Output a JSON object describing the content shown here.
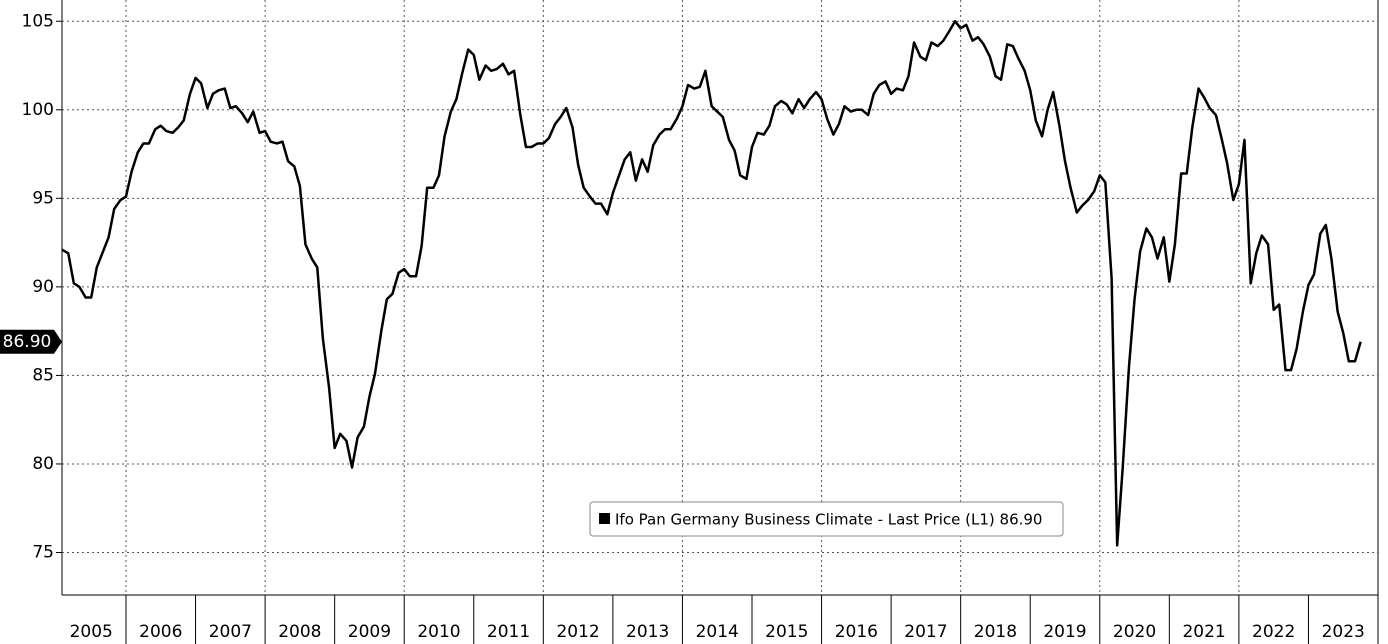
{
  "chart_data": {
    "type": "line",
    "series": [
      {
        "name": "Ifo Pan Germany Business Climate - Last Price (L1) 86.90",
        "color": "#000000",
        "x": [
          2005.08,
          2005.17,
          2005.25,
          2005.33,
          2005.42,
          2005.5,
          2005.58,
          2005.67,
          2005.75,
          2005.83,
          2005.92,
          2006,
          2006.08,
          2006.17,
          2006.25,
          2006.33,
          2006.42,
          2006.5,
          2006.58,
          2006.67,
          2006.75,
          2006.83,
          2006.92,
          2007,
          2007.08,
          2007.17,
          2007.25,
          2007.33,
          2007.42,
          2007.5,
          2007.58,
          2007.67,
          2007.75,
          2007.83,
          2007.92,
          2008,
          2008.08,
          2008.17,
          2008.25,
          2008.33,
          2008.42,
          2008.5,
          2008.58,
          2008.67,
          2008.75,
          2008.83,
          2008.92,
          2009,
          2009.08,
          2009.17,
          2009.25,
          2009.33,
          2009.42,
          2009.5,
          2009.58,
          2009.67,
          2009.75,
          2009.83,
          2009.92,
          2010,
          2010.08,
          2010.17,
          2010.25,
          2010.33,
          2010.42,
          2010.5,
          2010.58,
          2010.67,
          2010.75,
          2010.83,
          2010.92,
          2011,
          2011.08,
          2011.17,
          2011.25,
          2011.33,
          2011.42,
          2011.5,
          2011.58,
          2011.67,
          2011.75,
          2011.83,
          2011.92,
          2012,
          2012.08,
          2012.17,
          2012.25,
          2012.33,
          2012.42,
          2012.5,
          2012.58,
          2012.67,
          2012.75,
          2012.83,
          2012.92,
          2013,
          2013.08,
          2013.17,
          2013.25,
          2013.33,
          2013.42,
          2013.5,
          2013.58,
          2013.67,
          2013.75,
          2013.83,
          2013.92,
          2014,
          2014.08,
          2014.17,
          2014.25,
          2014.33,
          2014.42,
          2014.5,
          2014.58,
          2014.67,
          2014.75,
          2014.83,
          2014.92,
          2015,
          2015.08,
          2015.17,
          2015.25,
          2015.33,
          2015.42,
          2015.5,
          2015.58,
          2015.67,
          2015.75,
          2015.83,
          2015.92,
          2016,
          2016.08,
          2016.17,
          2016.25,
          2016.33,
          2016.42,
          2016.5,
          2016.58,
          2016.67,
          2016.75,
          2016.83,
          2016.92,
          2017,
          2017.08,
          2017.17,
          2017.25,
          2017.33,
          2017.42,
          2017.5,
          2017.58,
          2017.67,
          2017.75,
          2017.83,
          2017.92,
          2018,
          2018.08,
          2018.17,
          2018.25,
          2018.33,
          2018.42,
          2018.5,
          2018.58,
          2018.67,
          2018.75,
          2018.83,
          2018.92,
          2019,
          2019.08,
          2019.17,
          2019.25,
          2019.33,
          2019.42,
          2019.5,
          2019.58,
          2019.67,
          2019.75,
          2019.83,
          2019.92,
          2020,
          2020.08,
          2020.17,
          2020.25,
          2020.33,
          2020.42,
          2020.5,
          2020.58,
          2020.67,
          2020.75,
          2020.83,
          2020.92,
          2021,
          2021.08,
          2021.17,
          2021.25,
          2021.33,
          2021.42,
          2021.5,
          2021.58,
          2021.67,
          2021.75,
          2021.83,
          2021.92,
          2022,
          2022.08,
          2022.17,
          2022.25,
          2022.33,
          2022.42,
          2022.5,
          2022.58,
          2022.67,
          2022.75,
          2022.83,
          2022.92,
          2023,
          2023.08,
          2023.17,
          2023.25,
          2023.33,
          2023.42,
          2023.5,
          2023.58,
          2023.67,
          2023.75
        ],
        "values": [
          92.1,
          91.9,
          90.2,
          90.0,
          89.4,
          89.4,
          91.1,
          92.0,
          92.8,
          94.4,
          94.9,
          95.1,
          96.5,
          97.6,
          98.1,
          98.1,
          98.9,
          99.1,
          98.8,
          98.7,
          99.0,
          99.4,
          100.9,
          101.8,
          101.5,
          100.1,
          100.9,
          101.1,
          101.2,
          100.1,
          100.2,
          99.8,
          99.3,
          99.9,
          98.7,
          98.8,
          98.2,
          98.1,
          98.2,
          97.1,
          96.8,
          95.7,
          92.4,
          91.6,
          91.1,
          87.1,
          84.3,
          80.9,
          81.7,
          81.3,
          79.8,
          81.5,
          82.1,
          83.8,
          85.1,
          87.5,
          89.3,
          89.6,
          90.8,
          91.0,
          90.6,
          90.6,
          92.3,
          95.6,
          95.6,
          96.3,
          98.5,
          99.9,
          100.6,
          102.0,
          103.4,
          103.1,
          101.7,
          102.5,
          102.2,
          102.3,
          102.6,
          102.0,
          102.2,
          99.7,
          97.9,
          97.9,
          98.1,
          98.1,
          98.4,
          99.2,
          99.6,
          100.1,
          99.0,
          96.9,
          95.6,
          95.1,
          94.7,
          94.7,
          94.1,
          95.3,
          96.2,
          97.2,
          97.6,
          96.0,
          97.2,
          96.5,
          98.0,
          98.6,
          98.9,
          98.9,
          99.5,
          100.2,
          101.4,
          101.2,
          101.3,
          102.2,
          100.2,
          99.9,
          99.6,
          98.3,
          97.7,
          96.3,
          96.1,
          97.9,
          98.7,
          98.6,
          99.1,
          100.2,
          100.5,
          100.3,
          99.8,
          100.6,
          100.1,
          100.6,
          101.0,
          100.6,
          99.5,
          98.6,
          99.2,
          100.2,
          99.9,
          100.0,
          100.0,
          99.7,
          100.9,
          101.4,
          101.6,
          100.9,
          101.2,
          101.1,
          101.9,
          103.8,
          103.0,
          102.8,
          103.8,
          103.6,
          103.9,
          104.4,
          105.0,
          104.6,
          104.8,
          103.9,
          104.1,
          103.7,
          103.0,
          101.9,
          101.7,
          103.7,
          103.6,
          102.9,
          102.2,
          101.1,
          99.4,
          98.5,
          100.0,
          101.0,
          99.1,
          97.1,
          95.6,
          94.2,
          94.6,
          94.9,
          95.4,
          96.3,
          95.9,
          90.5,
          75.4,
          79.8,
          85.5,
          89.3,
          92.0,
          93.3,
          92.8,
          91.6,
          92.8,
          90.3,
          92.4,
          96.4,
          96.4,
          99.0,
          101.2,
          100.7,
          100.1,
          99.7,
          98.4,
          97.0,
          94.9,
          95.8,
          98.3,
          90.2,
          91.9,
          92.9,
          92.4,
          88.7,
          89.0,
          85.3,
          85.3,
          86.5,
          88.6,
          90.1,
          90.7,
          93.0,
          93.5,
          91.6,
          88.6,
          87.4,
          85.8,
          85.8,
          86.9
        ]
      }
    ],
    "last_label": "86.90",
    "xlim": [
      2005.08,
      2024.0
    ],
    "xticks": [
      {
        "value": 2005.5,
        "label": "2005"
      },
      {
        "value": 2006.5,
        "label": "2006"
      },
      {
        "value": 2007.5,
        "label": "2007"
      },
      {
        "value": 2008.5,
        "label": "2008"
      },
      {
        "value": 2009.5,
        "label": "2009"
      },
      {
        "value": 2010.5,
        "label": "2010"
      },
      {
        "value": 2011.5,
        "label": "2011"
      },
      {
        "value": 2012.5,
        "label": "2012"
      },
      {
        "value": 2013.5,
        "label": "2013"
      },
      {
        "value": 2014.5,
        "label": "2014"
      },
      {
        "value": 2015.5,
        "label": "2015"
      },
      {
        "value": 2016.5,
        "label": "2016"
      },
      {
        "value": 2017.5,
        "label": "2017"
      },
      {
        "value": 2018.5,
        "label": "2018"
      },
      {
        "value": 2019.5,
        "label": "2019"
      },
      {
        "value": 2020.5,
        "label": "2020"
      },
      {
        "value": 2021.5,
        "label": "2021"
      },
      {
        "value": 2022.5,
        "label": "2022"
      },
      {
        "value": 2023.5,
        "label": "2023"
      }
    ],
    "xgrid": [
      2006,
      2008,
      2010,
      2012,
      2014,
      2016,
      2018,
      2020,
      2022
    ],
    "ylim": [
      72.6,
      106.2
    ],
    "yticks": [
      75,
      80,
      85,
      90,
      95,
      100,
      105
    ],
    "grid": true
  }
}
